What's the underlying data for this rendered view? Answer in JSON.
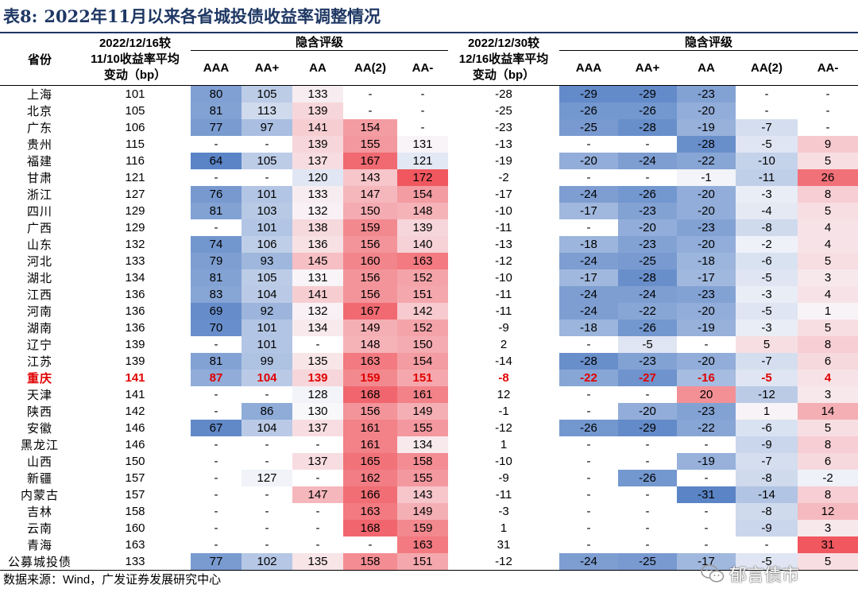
{
  "title": {
    "label": "表8:",
    "text": "2022年11月以来各省城投债收益率调整情况"
  },
  "header": {
    "province": "省份",
    "col1": [
      "2022/12/16较",
      "11/10收益率平均",
      "变动（bp）"
    ],
    "col2": [
      "2022/12/30较",
      "12/16收益率平均",
      "变动（bp）"
    ],
    "group_label": "隐含评级",
    "ratings": [
      "AAA",
      "AA+",
      "AA",
      "AA(2)",
      "AA-"
    ]
  },
  "scale": {
    "left": {
      "base": 130,
      "min": 64,
      "max": 172
    },
    "right": {
      "base": 0,
      "min": -31,
      "max": 31
    },
    "colors": {
      "low": "#5a84c6",
      "mid": "#f8f8fb",
      "high": "#f0575f"
    }
  },
  "highlight_color": "#e00000",
  "rows": [
    {
      "province": "上海",
      "avg1": "101",
      "r1": [
        "80",
        "105",
        "133",
        "-",
        "-"
      ],
      "avg2": "-28",
      "r2": [
        "-29",
        "-29",
        "-23",
        "-",
        "-"
      ]
    },
    {
      "province": "北京",
      "avg1": "105",
      "r1": [
        "81",
        "113",
        "139",
        "-",
        "-"
      ],
      "avg2": "-25",
      "r2": [
        "-26",
        "-26",
        "-20",
        "-",
        "-"
      ]
    },
    {
      "province": "广东",
      "avg1": "106",
      "r1": [
        "77",
        "97",
        "141",
        "154",
        "-"
      ],
      "avg2": "-23",
      "r2": [
        "-25",
        "-28",
        "-19",
        "-7",
        "-"
      ]
    },
    {
      "province": "贵州",
      "avg1": "115",
      "r1": [
        "-",
        "-",
        "139",
        "155",
        "131"
      ],
      "avg2": "-13",
      "r2": [
        "-",
        "-",
        "-28",
        "-5",
        "9"
      ]
    },
    {
      "province": "福建",
      "avg1": "116",
      "r1": [
        "64",
        "105",
        "137",
        "167",
        "121"
      ],
      "avg2": "-19",
      "r2": [
        "-20",
        "-24",
        "-22",
        "-10",
        "5"
      ]
    },
    {
      "province": "甘肃",
      "avg1": "121",
      "r1": [
        "-",
        "-",
        "120",
        "143",
        "172"
      ],
      "avg2": "-2",
      "r2": [
        "-",
        "-",
        "-1",
        "-11",
        "26"
      ]
    },
    {
      "province": "浙江",
      "avg1": "127",
      "r1": [
        "76",
        "101",
        "133",
        "147",
        "154"
      ],
      "avg2": "-17",
      "r2": [
        "-24",
        "-26",
        "-20",
        "-3",
        "8"
      ]
    },
    {
      "province": "四川",
      "avg1": "129",
      "r1": [
        "81",
        "103",
        "132",
        "150",
        "148"
      ],
      "avg2": "-10",
      "r2": [
        "-17",
        "-23",
        "-20",
        "-4",
        "5"
      ]
    },
    {
      "province": "广西",
      "avg1": "129",
      "r1": [
        "-",
        "101",
        "138",
        "159",
        "139"
      ],
      "avg2": "-11",
      "r2": [
        "-",
        "-20",
        "-23",
        "-8",
        "4"
      ]
    },
    {
      "province": "山东",
      "avg1": "132",
      "r1": [
        "74",
        "106",
        "136",
        "156",
        "140"
      ],
      "avg2": "-13",
      "r2": [
        "-18",
        "-23",
        "-20",
        "-2",
        "4"
      ]
    },
    {
      "province": "河北",
      "avg1": "133",
      "r1": [
        "79",
        "93",
        "145",
        "160",
        "163"
      ],
      "avg2": "-12",
      "r2": [
        "-24",
        "-25",
        "-18",
        "-6",
        "5"
      ]
    },
    {
      "province": "湖北",
      "avg1": "134",
      "r1": [
        "81",
        "105",
        "131",
        "156",
        "152"
      ],
      "avg2": "-10",
      "r2": [
        "-17",
        "-28",
        "-17",
        "-5",
        "3"
      ]
    },
    {
      "province": "江西",
      "avg1": "136",
      "r1": [
        "83",
        "104",
        "141",
        "156",
        "151"
      ],
      "avg2": "-11",
      "r2": [
        "-24",
        "-24",
        "-23",
        "-3",
        "4"
      ]
    },
    {
      "province": "河南",
      "avg1": "136",
      "r1": [
        "69",
        "92",
        "132",
        "167",
        "142"
      ],
      "avg2": "-11",
      "r2": [
        "-24",
        "-22",
        "-20",
        "-5",
        "1"
      ]
    },
    {
      "province": "湖南",
      "avg1": "136",
      "r1": [
        "70",
        "101",
        "134",
        "149",
        "152"
      ],
      "avg2": "-9",
      "r2": [
        "-18",
        "-26",
        "-19",
        "-3",
        "5"
      ]
    },
    {
      "province": "辽宁",
      "avg1": "139",
      "r1": [
        "-",
        "101",
        "-",
        "148",
        "150"
      ],
      "avg2": "2",
      "r2": [
        "-",
        "-5",
        "-",
        "5",
        "8"
      ]
    },
    {
      "province": "江苏",
      "avg1": "139",
      "r1": [
        "81",
        "99",
        "135",
        "163",
        "154"
      ],
      "avg2": "-14",
      "r2": [
        "-28",
        "-23",
        "-20",
        "-7",
        "6"
      ]
    },
    {
      "province": "重庆",
      "avg1": "141",
      "r1": [
        "87",
        "104",
        "139",
        "159",
        "151"
      ],
      "avg2": "-8",
      "r2": [
        "-22",
        "-27",
        "-16",
        "-5",
        "4"
      ],
      "highlight": true
    },
    {
      "province": "天津",
      "avg1": "141",
      "r1": [
        "-",
        "-",
        "128",
        "168",
        "161"
      ],
      "avg2": "12",
      "r2": [
        "-",
        "-",
        "20",
        "-12",
        "3"
      ]
    },
    {
      "province": "陕西",
      "avg1": "142",
      "r1": [
        "-",
        "86",
        "130",
        "156",
        "149"
      ],
      "avg2": "-1",
      "r2": [
        "-",
        "-20",
        "-23",
        "1",
        "14"
      ]
    },
    {
      "province": "安徽",
      "avg1": "146",
      "r1": [
        "67",
        "104",
        "137",
        "161",
        "155"
      ],
      "avg2": "-12",
      "r2": [
        "-26",
        "-29",
        "-22",
        "-6",
        "5"
      ]
    },
    {
      "province": "黑龙江",
      "avg1": "146",
      "r1": [
        "-",
        "-",
        "-",
        "161",
        "134"
      ],
      "avg2": "1",
      "r2": [
        "-",
        "-",
        "-",
        "-9",
        "8"
      ]
    },
    {
      "province": "山西",
      "avg1": "150",
      "r1": [
        "-",
        "-",
        "137",
        "165",
        "158"
      ],
      "avg2": "-10",
      "r2": [
        "-",
        "-",
        "-19",
        "-7",
        "6"
      ]
    },
    {
      "province": "新疆",
      "avg1": "157",
      "r1": [
        "-",
        "127",
        "-",
        "162",
        "155"
      ],
      "avg2": "-9",
      "r2": [
        "-",
        "-26",
        "-",
        "-8",
        "-2"
      ]
    },
    {
      "province": "内蒙古",
      "avg1": "157",
      "r1": [
        "-",
        "-",
        "147",
        "166",
        "143"
      ],
      "avg2": "-11",
      "r2": [
        "-",
        "-",
        "-31",
        "-14",
        "8"
      ]
    },
    {
      "province": "吉林",
      "avg1": "158",
      "r1": [
        "-",
        "-",
        "-",
        "163",
        "149"
      ],
      "avg2": "-3",
      "r2": [
        "-",
        "-",
        "-",
        "-8",
        "12"
      ]
    },
    {
      "province": "云南",
      "avg1": "160",
      "r1": [
        "-",
        "-",
        "-",
        "168",
        "159"
      ],
      "avg2": "1",
      "r2": [
        "-",
        "-",
        "-",
        "-9",
        "3"
      ]
    },
    {
      "province": "青海",
      "avg1": "163",
      "r1": [
        "-",
        "-",
        "-",
        "-",
        "163"
      ],
      "avg2": "31",
      "r2": [
        "-",
        "-",
        "-",
        "-",
        "31"
      ]
    },
    {
      "province": "公募城投债",
      "avg1": "133",
      "r1": [
        "77",
        "102",
        "135",
        "158",
        "151"
      ],
      "avg2": "-12",
      "r2": [
        "-24",
        "-25",
        "-17",
        "-5",
        "5"
      ]
    }
  ],
  "source": "数据来源：Wind，广发证券发展研究中心",
  "watermark": {
    "text": "郁言债市",
    "icon": "wechat-icon"
  }
}
